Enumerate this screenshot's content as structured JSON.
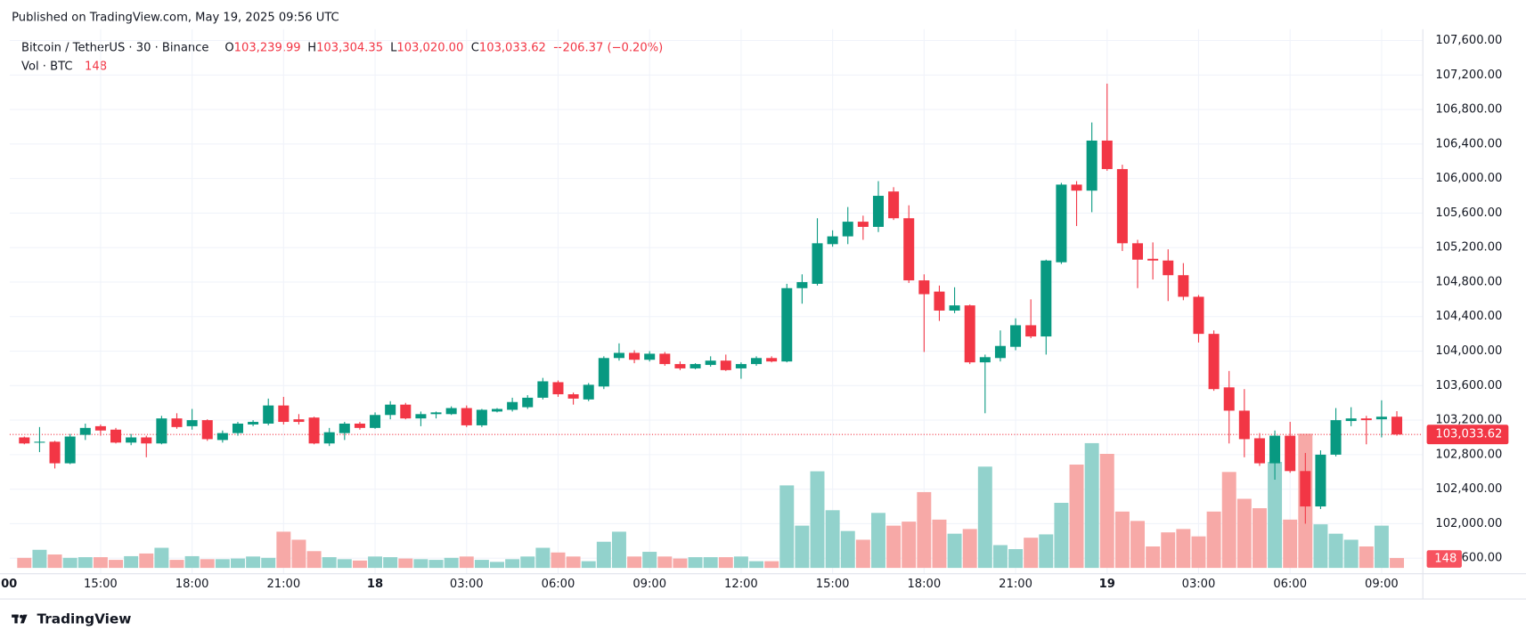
{
  "header": {
    "published": "Published on TradingView.com, May 19, 2025 09:56 UTC",
    "symbol": "Bitcoin / TetherUS · 30 · Binance",
    "ohlc": [
      {
        "key": "O",
        "label": "103,239.99"
      },
      {
        "key": "H",
        "label": "103,304.35"
      },
      {
        "key": "L",
        "label": "103,020.00"
      },
      {
        "key": "C",
        "label": "103,033.62"
      }
    ],
    "change": {
      "value": -206.37,
      "label": "−206.37 (−0.20%)"
    },
    "volume_title": "Vol · BTC",
    "volume_label": "148"
  },
  "footer": {
    "brand": "TradingView"
  },
  "chart_data": {
    "type": "candlestick",
    "up_color": "#089981",
    "down_color": "#f23645",
    "volume_up_color": "#92d2cc",
    "volume_down_color": "#f7a9a7",
    "last_price": {
      "value": 103033.62,
      "label": "103,033.62"
    },
    "ylim": [
      101420,
      107730
    ],
    "yticks": [
      {
        "value": 101600,
        "label": "101,600.00"
      },
      {
        "value": 102000,
        "label": "102,000.00"
      },
      {
        "value": 102400,
        "label": "102,400.00"
      },
      {
        "value": 102800,
        "label": "102,800.00"
      },
      {
        "value": 103200,
        "label": "103,200.00"
      },
      {
        "value": 103600,
        "label": "103,600.00"
      },
      {
        "value": 104000,
        "label": "104,000.00"
      },
      {
        "value": 104400,
        "label": "104,400.00"
      },
      {
        "value": 104800,
        "label": "104,800.00"
      },
      {
        "value": 105200,
        "label": "105,200.00"
      },
      {
        "value": 105600,
        "label": "105,600.00"
      },
      {
        "value": 106000,
        "label": "106,000.00"
      },
      {
        "value": 106400,
        "label": "106,400.00"
      },
      {
        "value": 106800,
        "label": "106,800.00"
      },
      {
        "value": 107200,
        "label": "107,200.00"
      },
      {
        "value": 107600,
        "label": "107,600.00"
      }
    ],
    "xticks": [
      {
        "value": -1,
        "label": "00"
      },
      {
        "value": 5,
        "label": "15:00"
      },
      {
        "value": 11,
        "label": "18:00"
      },
      {
        "value": 17,
        "label": "21:00"
      },
      {
        "value": 23,
        "label": "18"
      },
      {
        "value": 29,
        "label": "03:00"
      },
      {
        "value": 35,
        "label": "06:00"
      },
      {
        "value": 41,
        "label": "09:00"
      },
      {
        "value": 47,
        "label": "12:00"
      },
      {
        "value": 53,
        "label": "15:00"
      },
      {
        "value": 59,
        "label": "18:00"
      },
      {
        "value": 65,
        "label": "21:00"
      },
      {
        "value": 71,
        "label": "19"
      },
      {
        "value": 77,
        "label": "03:00"
      },
      {
        "value": 83,
        "label": "06:00"
      },
      {
        "value": 89,
        "label": "09:00"
      }
    ],
    "grid": true,
    "open": [
      103000,
      102940,
      102950,
      102700,
      103030,
      103130,
      103090,
      102940,
      103000,
      102930,
      103220,
      103130,
      103200,
      102970,
      103050,
      103150,
      103160,
      103370,
      103210,
      103230,
      102930,
      103050,
      103160,
      103110,
      103260,
      103380,
      103220,
      103270,
      103270,
      103340,
      103140,
      103300,
      103320,
      103350,
      103460,
      103640,
      103500,
      103440,
      103590,
      103920,
      103980,
      103900,
      103970,
      103850,
      103800,
      103840,
      103890,
      103800,
      103850,
      103920,
      103880,
      104730,
      104780,
      105240,
      105330,
      105500,
      105440,
      105850,
      105540,
      104820,
      104690,
      104470,
      104530,
      103870,
      103920,
      104050,
      104300,
      104170,
      105030,
      105930,
      105860,
      106440,
      106110,
      105250,
      105070,
      105050,
      104880,
      104630,
      104200,
      103580,
      103310,
      102990,
      102700,
      103020,
      102610,
      102200,
      102800,
      103190,
      103220,
      103210,
      103239.99
    ],
    "high": [
      103010,
      103120,
      102960,
      103040,
      103160,
      103150,
      103110,
      103040,
      103020,
      103250,
      103280,
      103330,
      103210,
      103080,
      103180,
      103200,
      103450,
      103470,
      103270,
      103240,
      103110,
      103180,
      103180,
      103290,
      103420,
      103400,
      103300,
      103300,
      103360,
      103370,
      103330,
      103340,
      103460,
      103490,
      103690,
      103660,
      103520,
      103630,
      103940,
      104090,
      104010,
      104000,
      103990,
      103880,
      103860,
      103940,
      103960,
      103870,
      103940,
      103940,
      104780,
      104890,
      105540,
      105400,
      105670,
      105570,
      105970,
      105900,
      105690,
      104890,
      104760,
      104740,
      104540,
      103960,
      104240,
      104380,
      104600,
      105060,
      105950,
      105970,
      106650,
      107100,
      106160,
      105290,
      105260,
      105180,
      105020,
      104650,
      104240,
      103770,
      103560,
      103050,
      103080,
      103180,
      102820,
      102850,
      103340,
      103350,
      103250,
      103430,
      103304.35
    ],
    "low": [
      102920,
      102830,
      102640,
      102690,
      102970,
      103020,
      102930,
      102910,
      102770,
      102920,
      103100,
      103090,
      102960,
      102940,
      103020,
      103130,
      103140,
      103150,
      103150,
      102920,
      102900,
      102970,
      103090,
      103100,
      103210,
      103210,
      103130,
      103220,
      103260,
      103120,
      103120,
      103290,
      103300,
      103330,
      103440,
      103470,
      103380,
      103420,
      103560,
      103890,
      103860,
      103880,
      103830,
      103780,
      103790,
      103820,
      103770,
      103680,
      103830,
      103870,
      103870,
      104550,
      104760,
      105210,
      105240,
      105290,
      105380,
      105520,
      104790,
      103990,
      104350,
      104440,
      103850,
      103280,
      103880,
      104010,
      104150,
      103960,
      105010,
      105450,
      105610,
      106090,
      105160,
      104730,
      104830,
      104580,
      104590,
      104100,
      103540,
      102930,
      102770,
      102670,
      102510,
      102590,
      102000,
      102170,
      102780,
      103130,
      102920,
      103000,
      103020.0
    ],
    "close": [
      102930,
      102950,
      102700,
      103010,
      103110,
      103080,
      102940,
      103000,
      102930,
      103220,
      103120,
      103200,
      102980,
      103050,
      103160,
      103180,
      103370,
      103180,
      103180,
      102930,
      103060,
      103160,
      103110,
      103260,
      103380,
      103220,
      103270,
      103290,
      103340,
      103140,
      103320,
      103330,
      103410,
      103460,
      103650,
      103500,
      103450,
      103610,
      103920,
      103980,
      103900,
      103970,
      103850,
      103800,
      103850,
      103890,
      103780,
      103850,
      103920,
      103880,
      104730,
      104800,
      105250,
      105330,
      105500,
      105440,
      105800,
      105540,
      104820,
      104660,
      104470,
      104530,
      103870,
      103930,
      104060,
      104300,
      104170,
      105050,
      105930,
      105860,
      106440,
      106110,
      105250,
      105060,
      105050,
      104880,
      104630,
      104200,
      103560,
      103310,
      102980,
      102700,
      103020,
      102610,
      102200,
      102800,
      103200,
      103220,
      103200,
      103240,
      103033.62
    ],
    "volume": [
      150,
      270,
      200,
      150,
      160,
      160,
      120,
      175,
      215,
      300,
      120,
      175,
      130,
      130,
      140,
      170,
      150,
      540,
      420,
      250,
      160,
      130,
      110,
      170,
      160,
      140,
      130,
      120,
      150,
      170,
      120,
      90,
      130,
      170,
      300,
      230,
      170,
      100,
      390,
      540,
      170,
      240,
      170,
      140,
      160,
      160,
      160,
      170,
      100,
      100,
      1230,
      630,
      1440,
      860,
      550,
      420,
      820,
      630,
      690,
      1130,
      720,
      510,
      580,
      1510,
      340,
      280,
      450,
      500,
      970,
      1540,
      1860,
      1700,
      840,
      700,
      320,
      530,
      580,
      470,
      840,
      1430,
      1030,
      890,
      1580,
      720,
      2000,
      650,
      510,
      420,
      320,
      630,
      148
    ]
  }
}
